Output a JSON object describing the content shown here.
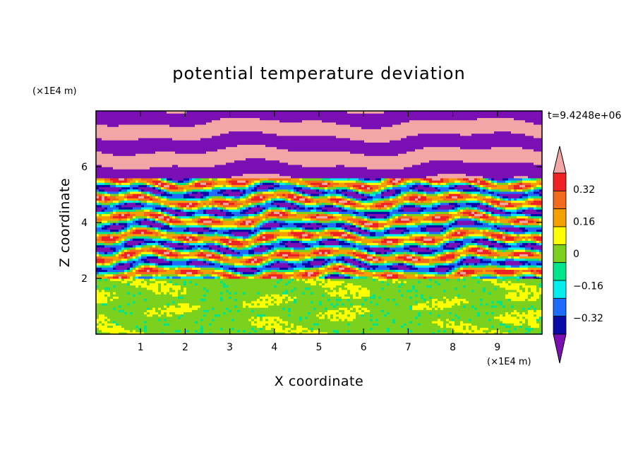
{
  "chart_data": {
    "type": "heatmap",
    "title": "potential temperature deviation",
    "xlabel": "X coordinate",
    "ylabel": "Z coordinate",
    "x_unit": "(×1E4 m)",
    "y_unit": "(×1E4 m)",
    "time_label": "t=9.4248e+06",
    "xlim": [
      0,
      10
    ],
    "ylim": [
      0,
      8
    ],
    "x_ticks": [
      "1",
      "2",
      "3",
      "4",
      "5",
      "6",
      "7",
      "8",
      "9"
    ],
    "y_ticks": [
      "2",
      "4",
      "6"
    ],
    "colorbar": {
      "levels": [
        -0.4,
        -0.32,
        -0.24,
        -0.16,
        -0.08,
        0,
        0.08,
        0.16,
        0.24,
        0.32,
        0.4
      ],
      "labels": [
        "0.32",
        "0.16",
        "0",
        "−0.16",
        "−0.32"
      ],
      "colors": [
        "#f2a6a6",
        "#ee2222",
        "#f46a1c",
        "#f5a000",
        "#ffff00",
        "#7ad11e",
        "#00e58a",
        "#00eeee",
        "#1e6cff",
        "#0a0aa8",
        "#7a10b4"
      ],
      "extend": "both"
    },
    "regions": [
      {
        "name": "upper layer",
        "z_range": [
          5.6,
          8
        ],
        "pattern": "alternating pink / purple horizontal bands"
      },
      {
        "name": "middle layer",
        "z_range": [
          2,
          5.6
        ],
        "pattern": "multicolor wavy bands"
      },
      {
        "name": "lower layer",
        "z_range": [
          0,
          2
        ],
        "pattern": "green with light-green swirls"
      }
    ]
  }
}
